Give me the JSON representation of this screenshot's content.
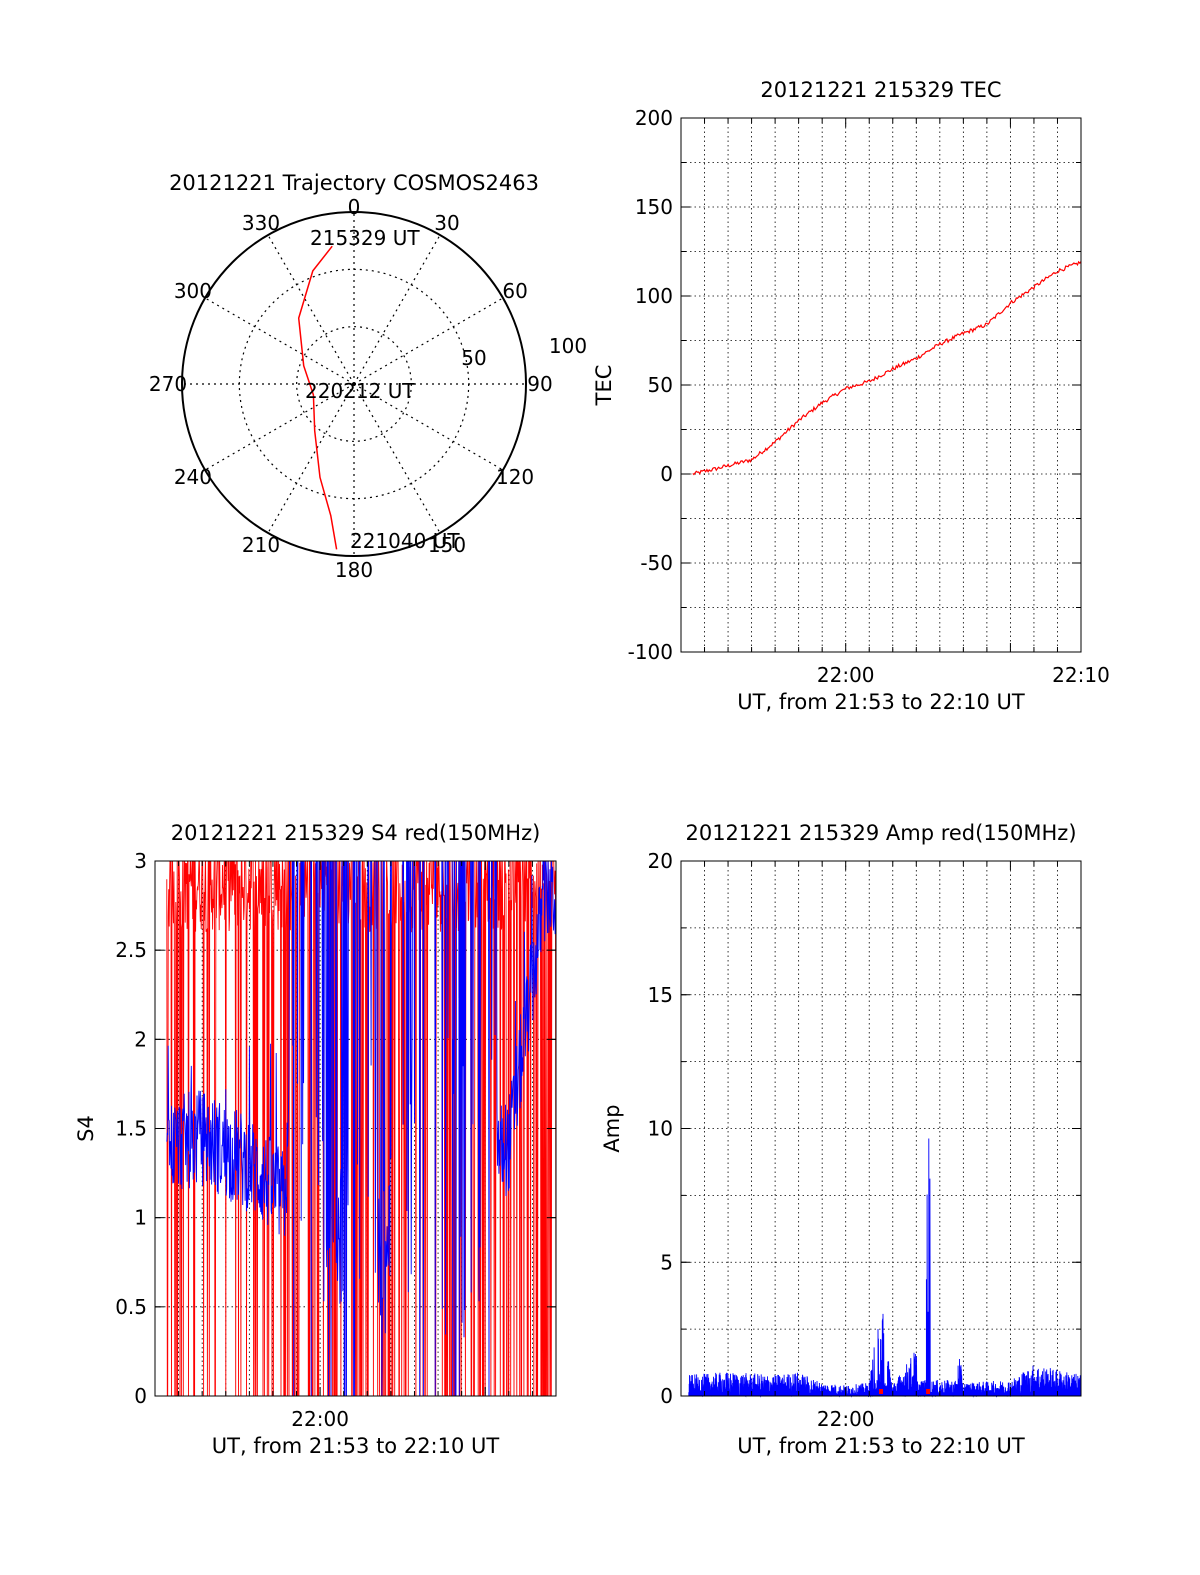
{
  "colors": {
    "red": "#ff0000",
    "blue": "#0000ff",
    "axis": "#000000"
  },
  "polar": {
    "title": "20121221 Trajectory COSMOS2463",
    "azimuth_labels": [
      "0",
      "30",
      "60",
      "90",
      "120",
      "150",
      "180",
      "210",
      "240",
      "270",
      "300",
      "330"
    ],
    "radial_labels": [
      "50",
      "100"
    ],
    "chart_data": {
      "type": "scatter",
      "title": "20121221 Trajectory COSMOS2463",
      "projection": "polar (azimuth clockwise from north, elevation radial)",
      "series": [
        {
          "points": [
            {
              "az": 351,
              "el": 17
            },
            {
              "az": 340,
              "el": 27
            },
            {
              "az": 320,
              "el": 45
            },
            {
              "az": 290,
              "el": 62
            },
            {
              "az": 255,
              "el": 68
            },
            {
              "az": 220,
              "el": 58
            },
            {
              "az": 200,
              "el": 38
            },
            {
              "az": 190,
              "el": 20
            },
            {
              "az": 186,
              "el": 3
            }
          ]
        }
      ],
      "annotations": [
        "215329 UT",
        "220212 UT",
        "221040 UT"
      ]
    }
  },
  "tec": {
    "title": "20121221 215329 TEC",
    "ylabel": "TEC",
    "xlabel": "UT, from 21:53 to 22:10 UT",
    "yticks": [
      "200",
      "150",
      "100",
      "50",
      "0",
      "-50",
      "-100"
    ],
    "xticks": [
      "22:00",
      "22:10"
    ],
    "chart_data": {
      "type": "line",
      "title": "20121221 215329 TEC",
      "xlabel": "UT, from 21:53 to 22:10 UT",
      "ylabel": "TEC",
      "xlim": [
        "21:53",
        "22:10"
      ],
      "ylim": [
        -100,
        200
      ],
      "grid": true,
      "x": [
        "21:53:30",
        "21:54:30",
        "21:56",
        "21:57",
        "21:58",
        "21:59",
        "22:00",
        "22:01",
        "22:02",
        "22:03",
        "22:04",
        "22:05",
        "22:06",
        "22:07",
        "22:08",
        "22:09",
        "22:10"
      ],
      "series": [
        {
          "values": [
            0,
            3,
            8,
            18,
            30,
            40,
            48,
            52,
            59,
            65,
            73,
            79,
            84,
            96,
            105,
            114,
            119
          ]
        }
      ]
    }
  },
  "s4": {
    "title": "20121221 215329 S4 red(150MHz)",
    "ylabel": "S4",
    "xlabel": "UT, from 21:53 to 22:10 UT",
    "yticks": [
      "3",
      "2.5",
      "2",
      "1.5",
      "1",
      "0.5",
      "0"
    ],
    "xticks": [
      "22:00"
    ],
    "chart_data": {
      "type": "line",
      "title": "20121221 215329 S4 red(150MHz)",
      "xlabel": "UT, from 21:53 to 22:10 UT",
      "ylabel": "S4",
      "xlim": [
        "21:53",
        "22:10"
      ],
      "ylim": [
        0,
        3
      ],
      "grid": true,
      "x": [
        "21:53:30",
        "21:55",
        "21:57",
        "21:58:30",
        "21:59:30",
        "22:00:30",
        "22:01:30",
        "22:02:30",
        "22:04",
        "22:06",
        "22:08",
        "22:09:30"
      ],
      "series": [
        {
          "color": "red",
          "values": [
            3,
            3,
            3,
            0,
            3,
            0,
            3,
            0,
            3,
            0,
            3,
            0
          ]
        },
        {
          "color": "blue",
          "values": [
            1.4,
            1.45,
            1.3,
            1.1,
            3,
            0.6,
            2.5,
            0.35,
            3,
            1.3,
            1.4,
            2.8
          ]
        }
      ]
    }
  },
  "amp": {
    "title": "20121221 215329 Amp red(150MHz)",
    "ylabel": "Amp",
    "xlabel": "UT, from 21:53 to 22:10 UT",
    "yticks": [
      "20",
      "15",
      "10",
      "5",
      "0"
    ],
    "xticks": [
      "22:00"
    ],
    "chart_data": {
      "type": "line",
      "title": "20121221 215329 Amp red(150MHz)",
      "xlabel": "UT, from 21:53 to 22:10 UT",
      "ylabel": "Amp",
      "xlim": [
        "21:53",
        "22:10"
      ],
      "ylim": [
        0,
        20
      ],
      "grid": true,
      "x": [
        "21:53:30",
        "21:55",
        "21:57",
        "21:58",
        "21:59",
        "22:00",
        "22:01",
        "22:01:30",
        "22:02",
        "22:03",
        "22:03:30",
        "22:05",
        "22:07",
        "22:08",
        "22:09",
        "22:10"
      ],
      "series": [
        {
          "color": "blue",
          "values": [
            0.8,
            0.9,
            0.8,
            0.9,
            0.5,
            0.4,
            0.5,
            3.8,
            0.4,
            1.8,
            10.2,
            0.5,
            0.6,
            1.2,
            1.0,
            0.8
          ]
        },
        {
          "color": "red",
          "values": [
            0,
            0,
            0,
            0,
            0,
            0,
            0,
            0.15,
            0,
            0,
            0.15,
            0,
            0,
            0,
            0,
            0
          ]
        }
      ]
    }
  }
}
